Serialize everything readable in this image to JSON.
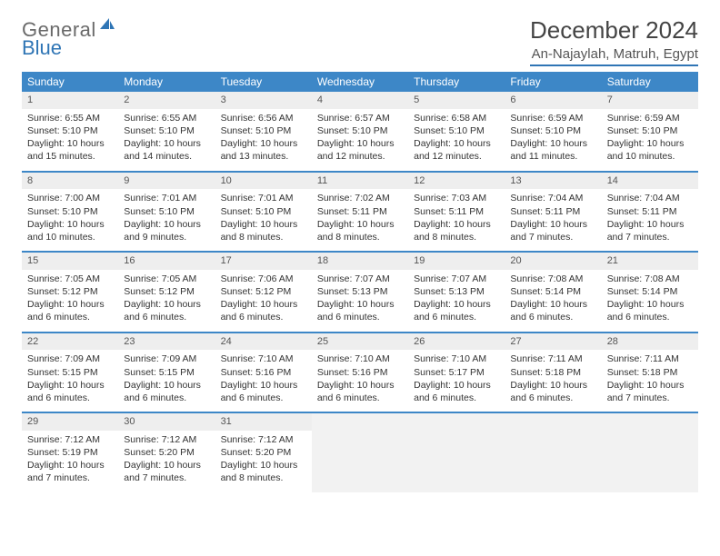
{
  "brand": {
    "text1": "General",
    "text2": "Blue"
  },
  "title": "December 2024",
  "location": "An-Najaylah, Matruh, Egypt",
  "colors": {
    "header_bg": "#3d87c7",
    "header_text": "#ffffff",
    "daynum_bg": "#eeeeee",
    "border": "#2f75b5",
    "body_text": "#333333",
    "logo_gray": "#6a6a6a",
    "logo_blue": "#2f75b5"
  },
  "typography": {
    "title_fontsize": 26,
    "location_fontsize": 15,
    "weekday_fontsize": 12,
    "cell_fontsize": 10.5
  },
  "weekdays": [
    "Sunday",
    "Monday",
    "Tuesday",
    "Wednesday",
    "Thursday",
    "Friday",
    "Saturday"
  ],
  "days": [
    {
      "n": "1",
      "sunrise": "6:55 AM",
      "sunset": "5:10 PM",
      "daylight": "10 hours and 15 minutes."
    },
    {
      "n": "2",
      "sunrise": "6:55 AM",
      "sunset": "5:10 PM",
      "daylight": "10 hours and 14 minutes."
    },
    {
      "n": "3",
      "sunrise": "6:56 AM",
      "sunset": "5:10 PM",
      "daylight": "10 hours and 13 minutes."
    },
    {
      "n": "4",
      "sunrise": "6:57 AM",
      "sunset": "5:10 PM",
      "daylight": "10 hours and 12 minutes."
    },
    {
      "n": "5",
      "sunrise": "6:58 AM",
      "sunset": "5:10 PM",
      "daylight": "10 hours and 12 minutes."
    },
    {
      "n": "6",
      "sunrise": "6:59 AM",
      "sunset": "5:10 PM",
      "daylight": "10 hours and 11 minutes."
    },
    {
      "n": "7",
      "sunrise": "6:59 AM",
      "sunset": "5:10 PM",
      "daylight": "10 hours and 10 minutes."
    },
    {
      "n": "8",
      "sunrise": "7:00 AM",
      "sunset": "5:10 PM",
      "daylight": "10 hours and 10 minutes."
    },
    {
      "n": "9",
      "sunrise": "7:01 AM",
      "sunset": "5:10 PM",
      "daylight": "10 hours and 9 minutes."
    },
    {
      "n": "10",
      "sunrise": "7:01 AM",
      "sunset": "5:10 PM",
      "daylight": "10 hours and 8 minutes."
    },
    {
      "n": "11",
      "sunrise": "7:02 AM",
      "sunset": "5:11 PM",
      "daylight": "10 hours and 8 minutes."
    },
    {
      "n": "12",
      "sunrise": "7:03 AM",
      "sunset": "5:11 PM",
      "daylight": "10 hours and 8 minutes."
    },
    {
      "n": "13",
      "sunrise": "7:04 AM",
      "sunset": "5:11 PM",
      "daylight": "10 hours and 7 minutes."
    },
    {
      "n": "14",
      "sunrise": "7:04 AM",
      "sunset": "5:11 PM",
      "daylight": "10 hours and 7 minutes."
    },
    {
      "n": "15",
      "sunrise": "7:05 AM",
      "sunset": "5:12 PM",
      "daylight": "10 hours and 6 minutes."
    },
    {
      "n": "16",
      "sunrise": "7:05 AM",
      "sunset": "5:12 PM",
      "daylight": "10 hours and 6 minutes."
    },
    {
      "n": "17",
      "sunrise": "7:06 AM",
      "sunset": "5:12 PM",
      "daylight": "10 hours and 6 minutes."
    },
    {
      "n": "18",
      "sunrise": "7:07 AM",
      "sunset": "5:13 PM",
      "daylight": "10 hours and 6 minutes."
    },
    {
      "n": "19",
      "sunrise": "7:07 AM",
      "sunset": "5:13 PM",
      "daylight": "10 hours and 6 minutes."
    },
    {
      "n": "20",
      "sunrise": "7:08 AM",
      "sunset": "5:14 PM",
      "daylight": "10 hours and 6 minutes."
    },
    {
      "n": "21",
      "sunrise": "7:08 AM",
      "sunset": "5:14 PM",
      "daylight": "10 hours and 6 minutes."
    },
    {
      "n": "22",
      "sunrise": "7:09 AM",
      "sunset": "5:15 PM",
      "daylight": "10 hours and 6 minutes."
    },
    {
      "n": "23",
      "sunrise": "7:09 AM",
      "sunset": "5:15 PM",
      "daylight": "10 hours and 6 minutes."
    },
    {
      "n": "24",
      "sunrise": "7:10 AM",
      "sunset": "5:16 PM",
      "daylight": "10 hours and 6 minutes."
    },
    {
      "n": "25",
      "sunrise": "7:10 AM",
      "sunset": "5:16 PM",
      "daylight": "10 hours and 6 minutes."
    },
    {
      "n": "26",
      "sunrise": "7:10 AM",
      "sunset": "5:17 PM",
      "daylight": "10 hours and 6 minutes."
    },
    {
      "n": "27",
      "sunrise": "7:11 AM",
      "sunset": "5:18 PM",
      "daylight": "10 hours and 6 minutes."
    },
    {
      "n": "28",
      "sunrise": "7:11 AM",
      "sunset": "5:18 PM",
      "daylight": "10 hours and 7 minutes."
    },
    {
      "n": "29",
      "sunrise": "7:12 AM",
      "sunset": "5:19 PM",
      "daylight": "10 hours and 7 minutes."
    },
    {
      "n": "30",
      "sunrise": "7:12 AM",
      "sunset": "5:20 PM",
      "daylight": "10 hours and 7 minutes."
    },
    {
      "n": "31",
      "sunrise": "7:12 AM",
      "sunset": "5:20 PM",
      "daylight": "10 hours and 8 minutes."
    }
  ],
  "labels": {
    "sunrise": "Sunrise: ",
    "sunset": "Sunset: ",
    "daylight": "Daylight: "
  },
  "layout": {
    "columns": 7,
    "rows": 5,
    "first_weekday_index": 0
  }
}
